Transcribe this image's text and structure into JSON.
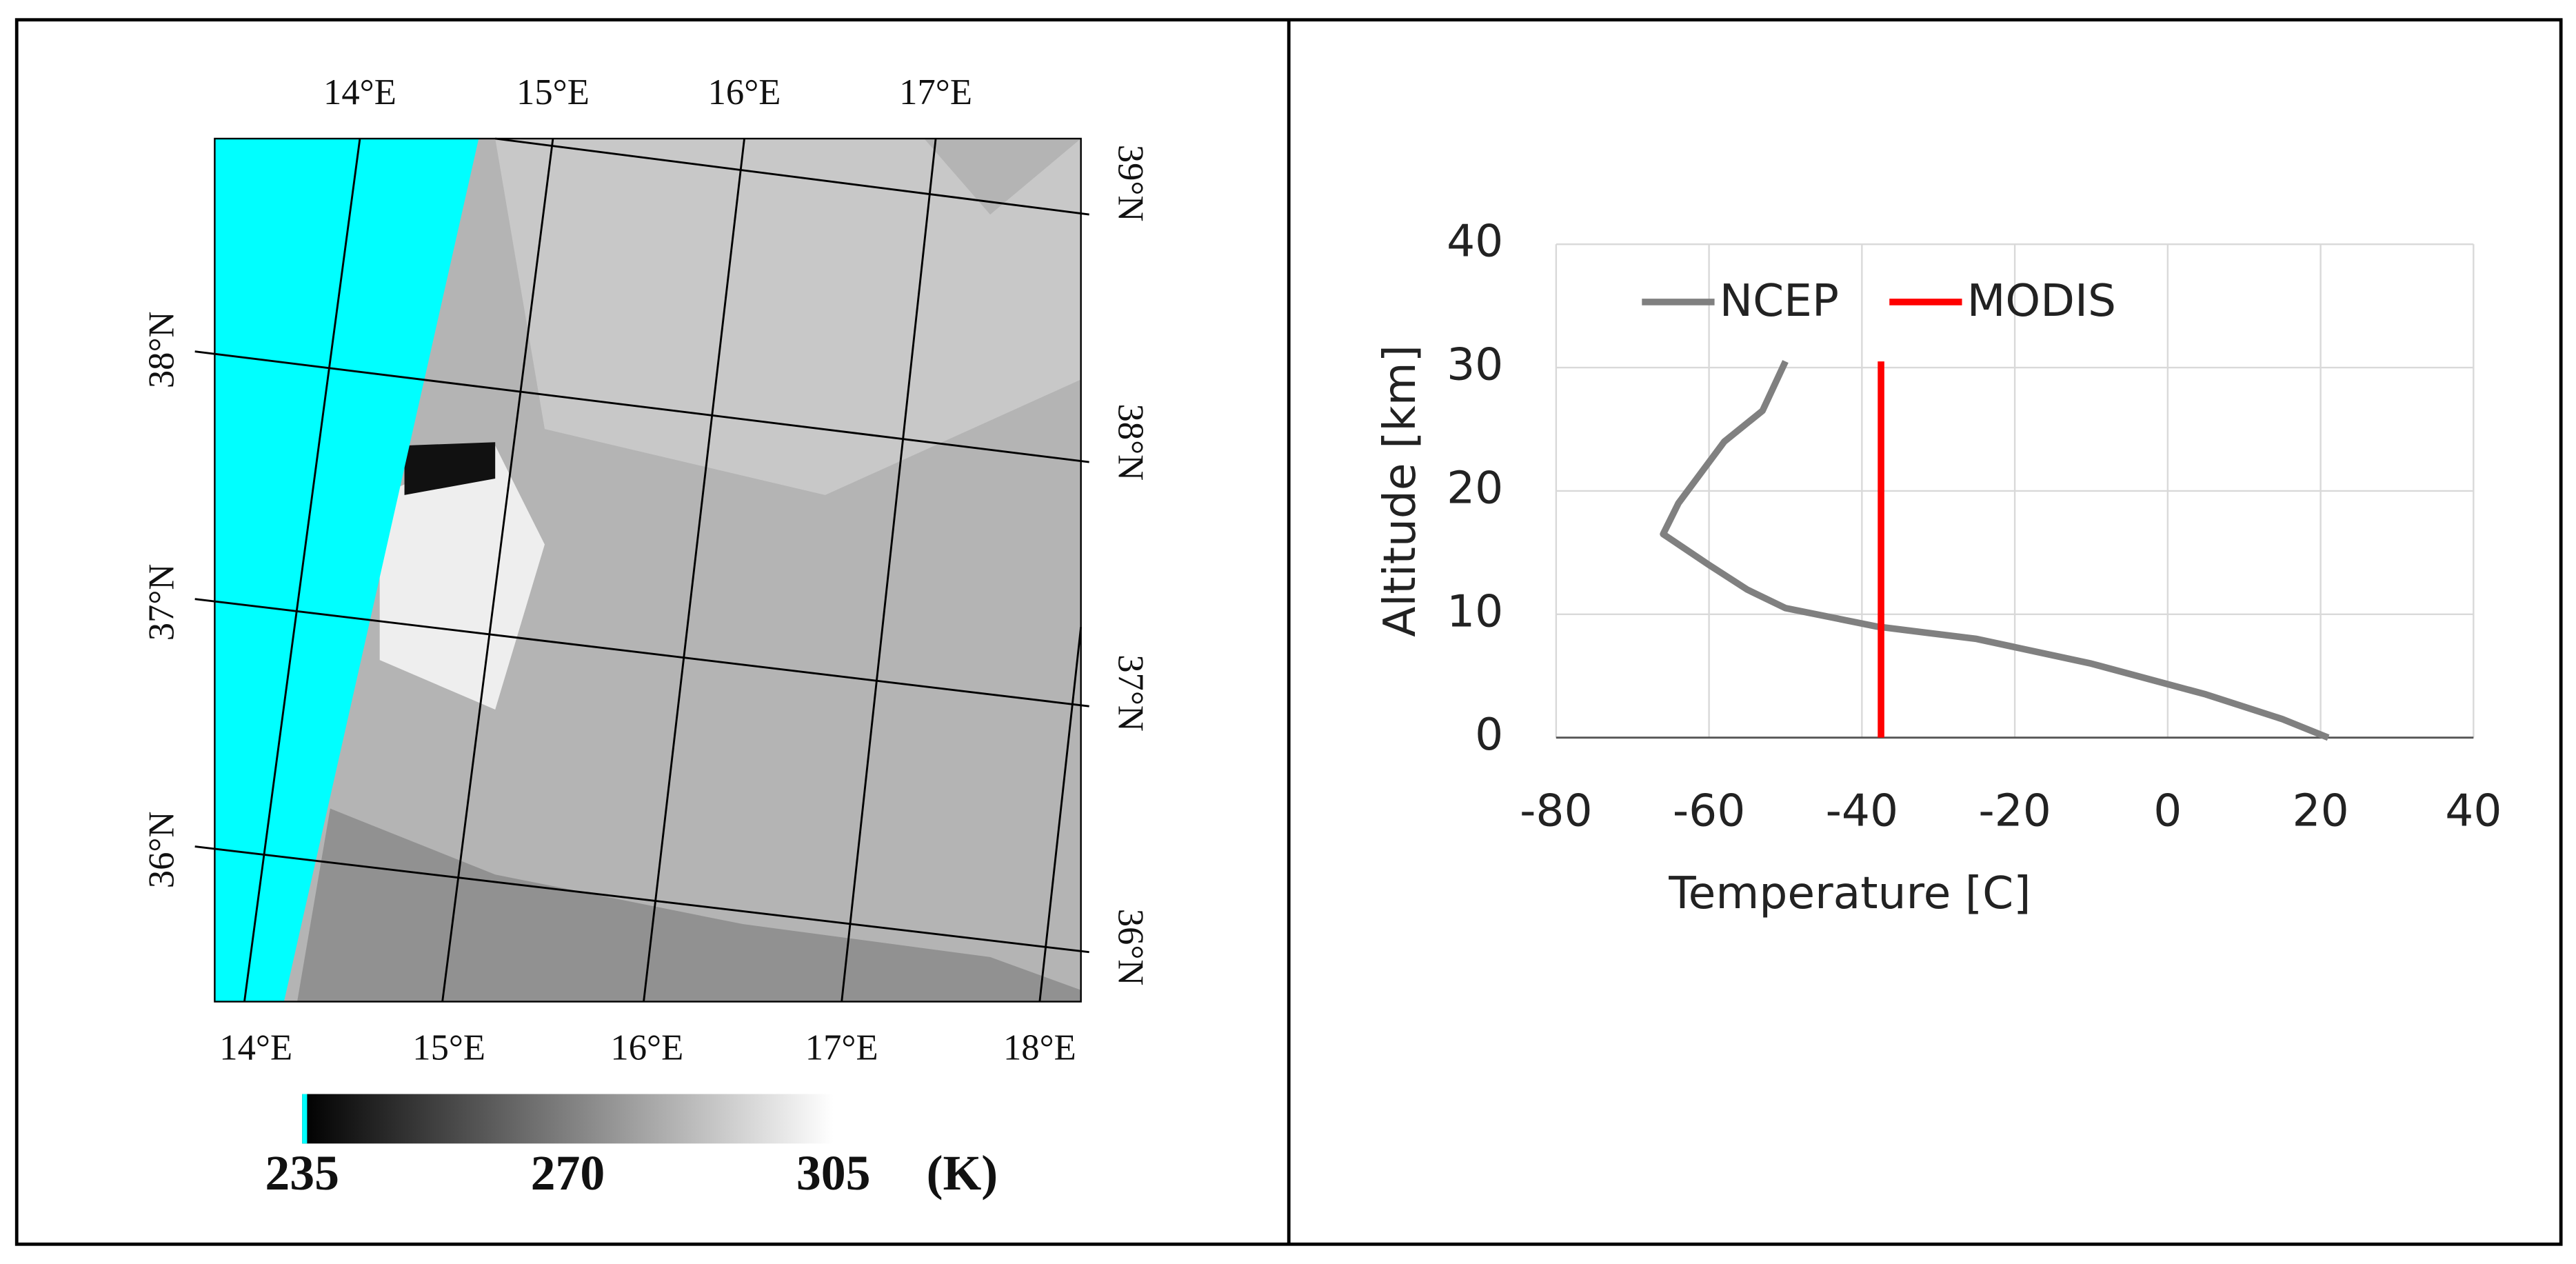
{
  "map": {
    "top_lon": [
      "14°E",
      "15°E",
      "16°E",
      "17°E"
    ],
    "bottom_lon": [
      "14°E",
      "15°E",
      "16°E",
      "17°E",
      "18°E"
    ],
    "left_lat": [
      "38°N",
      "37°N",
      "36°N"
    ],
    "right_lat": [
      "39°N",
      "38°N",
      "37°N",
      "36°N"
    ],
    "colorbar": {
      "ticks": [
        235,
        270,
        305
      ],
      "unit": "(K)"
    }
  },
  "chart_data": {
    "type": "line",
    "x_label": "Temperature [C]",
    "y_label": "Altitude [km]",
    "xlim": [
      -80,
      40
    ],
    "xticks": [
      -80,
      -60,
      -40,
      -20,
      0,
      20,
      40
    ],
    "ylim": [
      0,
      40
    ],
    "yticks": [
      0,
      10,
      20,
      30,
      40
    ],
    "grid": true,
    "series": [
      {
        "name": "NCEP",
        "color": "#808080",
        "x": [
          21,
          15,
          5,
          -10,
          -25,
          -38,
          -50,
          -55,
          -60,
          -66,
          -64,
          -61,
          -58,
          -53,
          -50
        ],
        "values": [
          0,
          1.5,
          3.5,
          6,
          8,
          9,
          10.5,
          12,
          14,
          16.5,
          19,
          21.5,
          24,
          26.5,
          30.5
        ]
      },
      {
        "name": "MODIS",
        "color": "#ff0000",
        "x": [
          -37.5,
          -37.5
        ],
        "values": [
          0,
          30.5
        ]
      }
    ]
  }
}
